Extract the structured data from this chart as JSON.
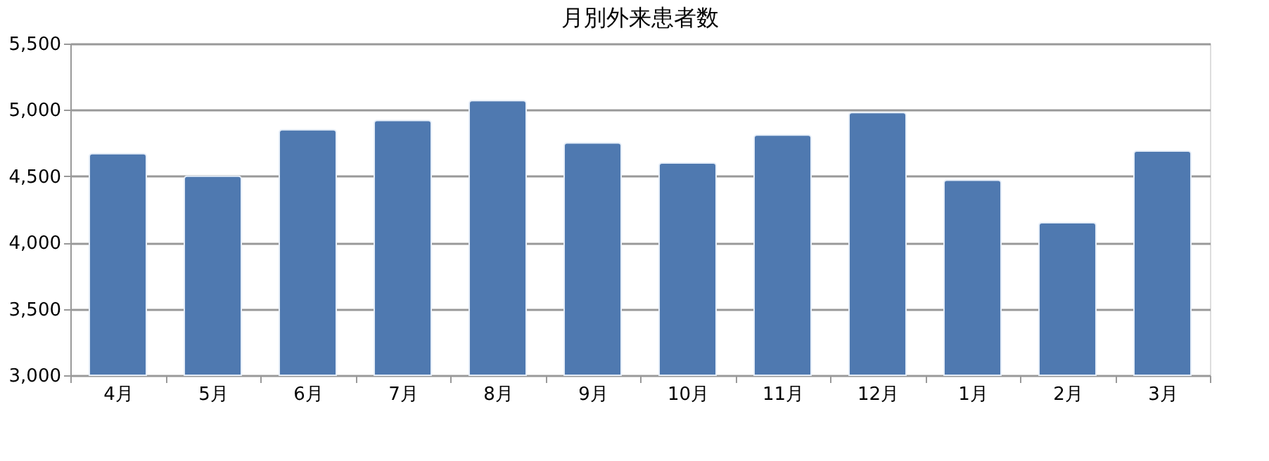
{
  "chart_data": {
    "type": "bar",
    "title": "月別外来患者数",
    "categories": [
      "4月",
      "5月",
      "6月",
      "7月",
      "8月",
      "9月",
      "10月",
      "11月",
      "12月",
      "1月",
      "2月",
      "3月"
    ],
    "values": [
      4670,
      4500,
      4850,
      4920,
      5070,
      4750,
      4600,
      4810,
      4980,
      4470,
      4150,
      4690
    ],
    "color": "#4f79b0",
    "ylim": [
      3000,
      5500
    ],
    "yticks": [
      {
        "value": 3000,
        "label": "3,000"
      },
      {
        "value": 3500,
        "label": "3,500"
      },
      {
        "value": 4000,
        "label": "4,000"
      },
      {
        "value": 4500,
        "label": "4,500"
      },
      {
        "value": 5000,
        "label": "5,000"
      },
      {
        "value": 5500,
        "label": "5,500"
      }
    ],
    "grid": "y"
  }
}
